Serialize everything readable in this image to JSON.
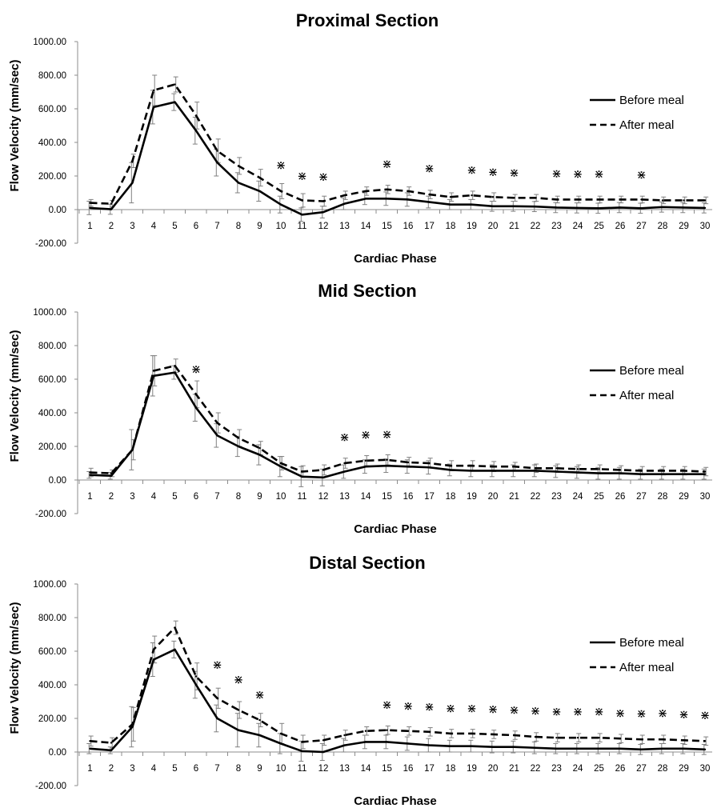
{
  "figure": {
    "background": "#ffffff",
    "line_color": "#000000",
    "errorbar_color": "#808080"
  },
  "chart_data": [
    {
      "type": "line",
      "title": "Proximal Section",
      "xlabel": "Cardiac Phase",
      "ylabel": "Flow Velocity (mm/sec)",
      "ylim": [
        -200,
        1000
      ],
      "yticks": [
        "1000.00",
        "800.00",
        "600.00",
        "400.00",
        "200.00",
        "0.00",
        "-200.00"
      ],
      "ytick_values": [
        1000,
        800,
        600,
        400,
        200,
        0,
        -200
      ],
      "x": [
        1,
        2,
        3,
        4,
        5,
        6,
        7,
        8,
        9,
        10,
        11,
        12,
        13,
        14,
        15,
        16,
        17,
        18,
        19,
        20,
        21,
        22,
        23,
        24,
        25,
        26,
        27,
        28,
        29,
        30
      ],
      "legend": "right",
      "series": [
        {
          "name": "Before meal",
          "style": "solid",
          "values": [
            10,
            2,
            160,
            610,
            640,
            470,
            280,
            160,
            110,
            30,
            -30,
            -15,
            35,
            65,
            65,
            60,
            45,
            30,
            30,
            20,
            20,
            18,
            12,
            10,
            8,
            12,
            8,
            15,
            12,
            10
          ],
          "errors": [
            40,
            30,
            120,
            100,
            50,
            80,
            80,
            60,
            60,
            50,
            40,
            35,
            35,
            35,
            40,
            40,
            35,
            30,
            30,
            30,
            30,
            30,
            30,
            30,
            30,
            30,
            30,
            30,
            30,
            30
          ]
        },
        {
          "name": "After meal",
          "style": "dashed",
          "values": [
            40,
            35,
            290,
            710,
            745,
            560,
            350,
            260,
            190,
            110,
            55,
            50,
            85,
            110,
            120,
            110,
            90,
            75,
            85,
            75,
            70,
            70,
            60,
            60,
            60,
            60,
            60,
            55,
            55,
            55
          ],
          "errors": [
            20,
            20,
            40,
            90,
            45,
            80,
            70,
            50,
            50,
            45,
            40,
            30,
            25,
            25,
            25,
            25,
            25,
            25,
            25,
            25,
            20,
            20,
            20,
            20,
            20,
            20,
            20,
            20,
            20,
            20
          ]
        }
      ],
      "significance_markers": {
        "symbol": "⋇",
        "points": [
          {
            "x": 10,
            "y": 265
          },
          {
            "x": 11,
            "y": 200
          },
          {
            "x": 12,
            "y": 195
          },
          {
            "x": 15,
            "y": 272
          },
          {
            "x": 17,
            "y": 245
          },
          {
            "x": 19,
            "y": 235
          },
          {
            "x": 20,
            "y": 225
          },
          {
            "x": 21,
            "y": 220
          },
          {
            "x": 23,
            "y": 215
          },
          {
            "x": 24,
            "y": 212
          },
          {
            "x": 25,
            "y": 212
          },
          {
            "x": 27,
            "y": 208
          }
        ]
      }
    },
    {
      "type": "line",
      "title": "Mid Section",
      "xlabel": "Cardiac Phase",
      "ylabel": "Flow Velocity (mm/sec)",
      "ylim": [
        -200,
        1000
      ],
      "yticks": [
        "1000.00",
        "800.00",
        "600.00",
        "400.00",
        "200.00",
        "0.00",
        "-200.00"
      ],
      "ytick_values": [
        1000,
        800,
        600,
        400,
        200,
        0,
        -200
      ],
      "x": [
        1,
        2,
        3,
        4,
        5,
        6,
        7,
        8,
        9,
        10,
        11,
        12,
        13,
        14,
        15,
        16,
        17,
        18,
        19,
        20,
        21,
        22,
        23,
        24,
        25,
        26,
        27,
        28,
        29,
        30
      ],
      "legend": "right",
      "series": [
        {
          "name": "Before meal",
          "style": "solid",
          "values": [
            30,
            25,
            180,
            620,
            640,
            430,
            265,
            200,
            150,
            80,
            20,
            15,
            50,
            80,
            85,
            80,
            75,
            60,
            55,
            55,
            55,
            55,
            50,
            45,
            40,
            40,
            35,
            35,
            35,
            35
          ],
          "errors": [
            20,
            20,
            120,
            120,
            40,
            80,
            70,
            60,
            60,
            60,
            60,
            50,
            40,
            40,
            40,
            40,
            40,
            35,
            35,
            35,
            35,
            35,
            35,
            35,
            35,
            35,
            30,
            30,
            30,
            30
          ]
        },
        {
          "name": "After meal",
          "style": "dashed",
          "values": [
            45,
            40,
            180,
            650,
            680,
            510,
            340,
            250,
            190,
            100,
            50,
            60,
            100,
            115,
            120,
            105,
            100,
            85,
            85,
            80,
            80,
            70,
            70,
            65,
            65,
            60,
            55,
            55,
            55,
            50
          ],
          "errors": [
            25,
            20,
            60,
            90,
            40,
            80,
            60,
            50,
            40,
            40,
            35,
            30,
            30,
            30,
            30,
            30,
            30,
            30,
            30,
            30,
            25,
            25,
            25,
            25,
            25,
            25,
            25,
            25,
            25,
            25
          ]
        }
      ],
      "significance_markers": {
        "symbol": "⋇",
        "points": [
          {
            "x": 6,
            "y": 660
          },
          {
            "x": 13,
            "y": 255
          },
          {
            "x": 14,
            "y": 270
          },
          {
            "x": 15,
            "y": 272
          }
        ]
      }
    },
    {
      "type": "line",
      "title": "Distal Section",
      "xlabel": "Cardiac Phase",
      "ylabel": "Flow Velocity (mm/sec)",
      "ylim": [
        -200,
        1000
      ],
      "yticks": [
        "1000.00",
        "800.00",
        "600.00",
        "400.00",
        "200.00",
        "0.00",
        "-200.00"
      ],
      "ytick_values": [
        1000,
        800,
        600,
        400,
        200,
        0,
        -200
      ],
      "x": [
        1,
        2,
        3,
        4,
        5,
        6,
        7,
        8,
        9,
        10,
        11,
        12,
        13,
        14,
        15,
        16,
        17,
        18,
        19,
        20,
        21,
        22,
        23,
        24,
        25,
        26,
        27,
        28,
        29,
        30
      ],
      "legend": "right",
      "series": [
        {
          "name": "Before meal",
          "style": "solid",
          "values": [
            20,
            10,
            150,
            550,
            610,
            400,
            200,
            130,
            100,
            50,
            5,
            0,
            40,
            60,
            60,
            50,
            40,
            35,
            35,
            30,
            30,
            25,
            20,
            20,
            20,
            20,
            15,
            20,
            20,
            15
          ],
          "errors": [
            30,
            20,
            120,
            100,
            50,
            80,
            80,
            100,
            70,
            60,
            60,
            50,
            40,
            40,
            40,
            40,
            40,
            35,
            35,
            35,
            35,
            35,
            30,
            30,
            30,
            30,
            30,
            30,
            30,
            30
          ]
        },
        {
          "name": "After meal",
          "style": "dashed",
          "values": [
            65,
            55,
            165,
            610,
            740,
            450,
            320,
            250,
            190,
            110,
            60,
            70,
            100,
            125,
            130,
            125,
            120,
            110,
            110,
            105,
            100,
            90,
            85,
            85,
            85,
            80,
            75,
            75,
            70,
            65
          ],
          "errors": [
            30,
            30,
            100,
            80,
            40,
            80,
            60,
            50,
            40,
            60,
            40,
            30,
            30,
            25,
            25,
            25,
            25,
            25,
            25,
            25,
            25,
            25,
            25,
            25,
            25,
            25,
            25,
            25,
            25,
            25
          ]
        }
      ],
      "significance_markers": {
        "symbol": "⋇",
        "points": [
          {
            "x": 7,
            "y": 520
          },
          {
            "x": 8,
            "y": 430
          },
          {
            "x": 9,
            "y": 340
          },
          {
            "x": 15,
            "y": 280
          },
          {
            "x": 16,
            "y": 275
          },
          {
            "x": 17,
            "y": 270
          },
          {
            "x": 18,
            "y": 260
          },
          {
            "x": 19,
            "y": 260
          },
          {
            "x": 20,
            "y": 255
          },
          {
            "x": 21,
            "y": 250
          },
          {
            "x": 22,
            "y": 245
          },
          {
            "x": 23,
            "y": 240
          },
          {
            "x": 24,
            "y": 240
          },
          {
            "x": 25,
            "y": 240
          },
          {
            "x": 26,
            "y": 230
          },
          {
            "x": 27,
            "y": 228
          },
          {
            "x": 28,
            "y": 230
          },
          {
            "x": 29,
            "y": 225
          },
          {
            "x": 30,
            "y": 218
          }
        ]
      }
    }
  ]
}
